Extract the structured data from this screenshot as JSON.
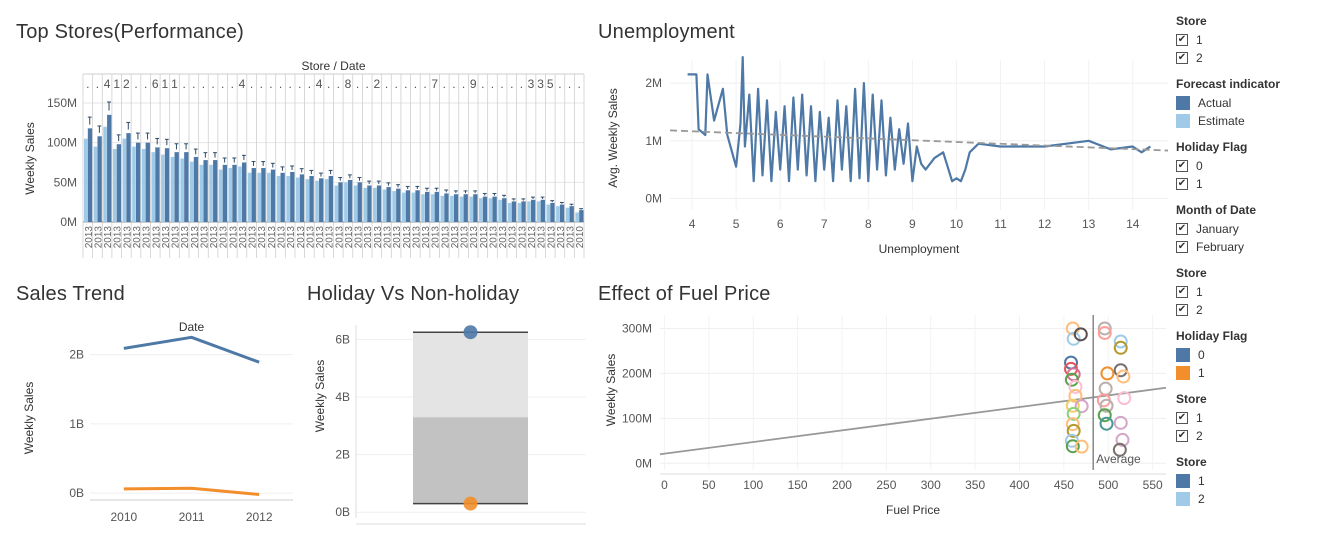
{
  "titles": {
    "top_stores": "Top Stores(Performance)",
    "unemployment": "Unemployment",
    "sales_trend": "Sales Trend",
    "holiday": "Holiday Vs Non-holiday",
    "fuel": "Effect of Fuel Price"
  },
  "colors": {
    "blue": "#4e79a7",
    "lightblue": "#a0cbe8",
    "orange": "#f28e2b",
    "grid": "#e6e6e6"
  },
  "chart_data": [
    {
      "id": "top_stores",
      "type": "bar",
      "title": "Top Stores(Performance)",
      "header": "Store / Date",
      "ylabel": "Weekly Sales",
      "ylim": [
        0,
        160
      ],
      "yticks": [
        {
          "v": 0,
          "label": "0M"
        },
        {
          "v": 50,
          "label": "50M"
        },
        {
          "v": 100,
          "label": "100M"
        },
        {
          "v": 150,
          "label": "150M"
        }
      ],
      "store_headers": [
        ".",
        ".",
        "4",
        "1",
        "2",
        ".",
        ".",
        "6",
        "1",
        "1",
        ".",
        ".",
        ".",
        ".",
        ".",
        ".",
        "4",
        ".",
        ".",
        ".",
        ".",
        ".",
        ".",
        ".",
        "4",
        ".",
        ".",
        "8",
        ".",
        ".",
        "2",
        ".",
        ".",
        ".",
        ".",
        ".",
        "7",
        ".",
        ".",
        ".",
        "9",
        ".",
        ".",
        ".",
        ".",
        ".",
        "3",
        "3",
        "5",
        ".",
        ".",
        "."
      ],
      "x_labels": [
        "2013",
        "2013",
        "2013",
        "2013",
        "2013",
        "2013",
        "2013",
        "2013",
        "2013",
        "2013",
        "2013",
        "2013",
        "2013",
        "2013",
        "2013",
        "2013",
        "2013",
        "2013",
        "2013",
        "2013",
        "2013",
        "2013",
        "2013",
        "2013",
        "2013",
        "2013",
        "2013",
        "2013",
        "2013",
        "2013",
        "2013",
        "2013",
        "2013",
        "2013",
        "2013",
        "2013",
        "2013",
        "2013",
        "2013",
        "2013",
        "2013",
        "2013",
        "2013",
        "2013",
        "2013",
        "2013",
        "2013",
        "2013",
        "2013",
        "2013",
        "2013",
        "2010"
      ],
      "values": [
        118,
        108,
        135,
        98,
        112,
        100,
        100,
        94,
        93,
        88,
        88,
        82,
        78,
        78,
        72,
        72,
        75,
        68,
        68,
        66,
        62,
        63,
        60,
        58,
        55,
        58,
        50,
        53,
        50,
        46,
        46,
        44,
        42,
        40,
        40,
        38,
        38,
        36,
        35,
        35,
        35,
        32,
        32,
        30,
        26,
        26,
        28,
        28,
        24,
        22,
        20,
        15
      ],
      "secondary_values": [
        105,
        95,
        120,
        92,
        105,
        95,
        92,
        88,
        85,
        82,
        80,
        76,
        72,
        72,
        66,
        68,
        70,
        62,
        62,
        62,
        58,
        58,
        56,
        54,
        52,
        54,
        46,
        50,
        46,
        43,
        43,
        41,
        39,
        37,
        37,
        35,
        35,
        33,
        33,
        32,
        32,
        30,
        30,
        28,
        24,
        24,
        26,
        26,
        22,
        20,
        18,
        12
      ]
    },
    {
      "id": "unemployment",
      "type": "line",
      "title": "Unemployment",
      "xlabel": "Unemployment",
      "ylabel": "Avg. Weekly Sales",
      "xlim": [
        3.5,
        14.8
      ],
      "ylim": [
        -0.2,
        2.4
      ],
      "xticks": [
        4,
        5,
        6,
        7,
        8,
        9,
        10,
        11,
        12,
        13,
        14
      ],
      "yticks": [
        {
          "v": 0,
          "label": "0M"
        },
        {
          "v": 1,
          "label": "1M"
        },
        {
          "v": 2,
          "label": "2M"
        }
      ],
      "trend": [
        [
          3.5,
          1.18
        ],
        [
          14.8,
          0.83
        ]
      ],
      "series": [
        {
          "name": "Actual",
          "points": [
            [
              3.9,
              2.15
            ],
            [
              4.1,
              2.15
            ],
            [
              4.15,
              1.2
            ],
            [
              4.3,
              1.1
            ],
            [
              4.35,
              2.15
            ],
            [
              4.5,
              1.35
            ],
            [
              4.7,
              1.9
            ],
            [
              4.8,
              1.1
            ],
            [
              5.0,
              0.55
            ],
            [
              5.1,
              1.3
            ],
            [
              5.15,
              2.45
            ],
            [
              5.2,
              0.9
            ],
            [
              5.3,
              1.8
            ],
            [
              5.4,
              0.3
            ],
            [
              5.5,
              1.9
            ],
            [
              5.6,
              0.4
            ],
            [
              5.7,
              1.7
            ],
            [
              5.8,
              0.3
            ],
            [
              5.9,
              1.5
            ],
            [
              6.0,
              0.5
            ],
            [
              6.1,
              1.6
            ],
            [
              6.2,
              0.3
            ],
            [
              6.3,
              1.75
            ],
            [
              6.4,
              0.5
            ],
            [
              6.5,
              1.8
            ],
            [
              6.6,
              0.4
            ],
            [
              6.7,
              1.6
            ],
            [
              6.8,
              0.3
            ],
            [
              6.9,
              1.5
            ],
            [
              7.0,
              0.5
            ],
            [
              7.1,
              1.4
            ],
            [
              7.2,
              0.3
            ],
            [
              7.3,
              1.7
            ],
            [
              7.4,
              0.5
            ],
            [
              7.5,
              1.6
            ],
            [
              7.6,
              0.3
            ],
            [
              7.7,
              1.9
            ],
            [
              7.8,
              0.35
            ],
            [
              7.9,
              2.0
            ],
            [
              8.0,
              0.3
            ],
            [
              8.1,
              1.8
            ],
            [
              8.2,
              0.5
            ],
            [
              8.3,
              1.7
            ],
            [
              8.4,
              0.4
            ],
            [
              8.5,
              1.4
            ],
            [
              8.6,
              0.5
            ],
            [
              8.7,
              1.2
            ],
            [
              8.8,
              0.6
            ],
            [
              8.9,
              1.3
            ],
            [
              9.0,
              0.3
            ],
            [
              9.1,
              0.9
            ],
            [
              9.2,
              0.6
            ],
            [
              9.3,
              0.5
            ],
            [
              9.5,
              0.7
            ],
            [
              9.7,
              0.8
            ],
            [
              9.9,
              0.3
            ],
            [
              10.0,
              0.35
            ],
            [
              10.1,
              0.3
            ],
            [
              10.2,
              0.5
            ],
            [
              10.3,
              0.8
            ],
            [
              10.5,
              0.95
            ],
            [
              11.0,
              0.9
            ],
            [
              12.0,
              0.9
            ],
            [
              13.0,
              1.0
            ],
            [
              13.5,
              0.85
            ],
            [
              14.0,
              0.9
            ],
            [
              14.2,
              0.8
            ],
            [
              14.4,
              0.9
            ]
          ]
        }
      ]
    },
    {
      "id": "sales_trend",
      "type": "line",
      "title": "Sales Trend",
      "header": "Date",
      "ylabel": "Weekly Sales",
      "categories": [
        "2010",
        "2011",
        "2012"
      ],
      "ylim": [
        -0.1,
        2.5
      ],
      "yticks": [
        {
          "v": 0,
          "label": "0B"
        },
        {
          "v": 1,
          "label": "1B"
        },
        {
          "v": 2,
          "label": "2B"
        }
      ],
      "series": [
        {
          "name": "0",
          "values": [
            2.09,
            2.25,
            1.89
          ]
        },
        {
          "name": "1",
          "values": [
            0.06,
            0.07,
            -0.02
          ]
        }
      ]
    },
    {
      "id": "holiday",
      "type": "bar",
      "title": "Holiday Vs Non-holiday",
      "ylabel": "Weekly Sales",
      "ylim": [
        -0.2,
        6.5
      ],
      "yticks": [
        {
          "v": 0,
          "label": "0B"
        },
        {
          "v": 2,
          "label": "2B"
        },
        {
          "v": 4,
          "label": "4B"
        },
        {
          "v": 6,
          "label": "6B"
        }
      ],
      "band": {
        "low": 0.3,
        "mid": 3.3,
        "high": 6.25
      },
      "points": [
        {
          "name": "0",
          "value": 6.25
        },
        {
          "name": "1",
          "value": 0.3
        }
      ]
    },
    {
      "id": "fuel",
      "type": "scatter",
      "title": "Effect of Fuel Price",
      "xlabel": "Fuel Price",
      "ylabel": "Weekly Sales",
      "xlim": [
        -5,
        565
      ],
      "ylim": [
        -15,
        330
      ],
      "xticks": [
        0,
        50,
        100,
        150,
        200,
        250,
        300,
        350,
        400,
        450,
        500,
        550
      ],
      "yticks": [
        {
          "v": 0,
          "label": "0M"
        },
        {
          "v": 100,
          "label": "100M"
        },
        {
          "v": 200,
          "label": "200M"
        },
        {
          "v": 300,
          "label": "300M"
        }
      ],
      "trend": [
        [
          -5,
          20
        ],
        [
          565,
          168
        ]
      ],
      "reference": {
        "value": 483,
        "label": "Average"
      },
      "points": [
        {
          "x": 460,
          "y": 300,
          "c": "#ffbe7d"
        },
        {
          "x": 461,
          "y": 277,
          "c": "#a0cbe8"
        },
        {
          "x": 469,
          "y": 287,
          "c": "#59504e"
        },
        {
          "x": 496,
          "y": 300,
          "c": "#bab0ac"
        },
        {
          "x": 496,
          "y": 290,
          "c": "#ff9d9a"
        },
        {
          "x": 514,
          "y": 271,
          "c": "#a0cbe8"
        },
        {
          "x": 514,
          "y": 257,
          "c": "#b6992d"
        },
        {
          "x": 458,
          "y": 224,
          "c": "#4e79a7"
        },
        {
          "x": 458,
          "y": 210,
          "c": "#e15759"
        },
        {
          "x": 461,
          "y": 198,
          "c": "#d37295"
        },
        {
          "x": 459,
          "y": 186,
          "c": "#59a14f"
        },
        {
          "x": 463,
          "y": 170,
          "c": "#fabfd2"
        },
        {
          "x": 499,
          "y": 200,
          "c": "#f28e2b"
        },
        {
          "x": 514,
          "y": 207,
          "c": "#79706e"
        },
        {
          "x": 517,
          "y": 193,
          "c": "#ffbe7d"
        },
        {
          "x": 497,
          "y": 166,
          "c": "#bab0ac"
        },
        {
          "x": 463,
          "y": 150,
          "c": "#ffbe7d"
        },
        {
          "x": 460,
          "y": 128,
          "c": "#f1ce63"
        },
        {
          "x": 470,
          "y": 127,
          "c": "#d4a6c8"
        },
        {
          "x": 495,
          "y": 140,
          "c": "#ff9d9a"
        },
        {
          "x": 498,
          "y": 128,
          "c": "#bab0ac"
        },
        {
          "x": 518,
          "y": 145,
          "c": "#fabfd2"
        },
        {
          "x": 461,
          "y": 110,
          "c": "#8cd17d"
        },
        {
          "x": 460,
          "y": 87,
          "c": "#ffbe7d"
        },
        {
          "x": 461,
          "y": 72,
          "c": "#b6992d"
        },
        {
          "x": 459,
          "y": 50,
          "c": "#a0cbe8"
        },
        {
          "x": 460,
          "y": 38,
          "c": "#59a14f"
        },
        {
          "x": 470,
          "y": 37,
          "c": "#ffbe7d"
        },
        {
          "x": 496,
          "y": 107,
          "c": "#59a14f"
        },
        {
          "x": 498,
          "y": 88,
          "c": "#499894"
        },
        {
          "x": 514,
          "y": 90,
          "c": "#d4a6c8"
        },
        {
          "x": 516,
          "y": 52,
          "c": "#d4a6c8"
        },
        {
          "x": 513,
          "y": 30,
          "c": "#79706e"
        }
      ]
    }
  ],
  "legend": {
    "groups": [
      {
        "title": "Store",
        "kind": "check",
        "items": [
          "1",
          "2"
        ]
      },
      {
        "title": "Forecast indicator",
        "kind": "swatch",
        "items": [
          "Actual",
          "Estimate"
        ],
        "colors": [
          "#4e79a7",
          "#a0cbe8"
        ]
      },
      {
        "title": "Holiday Flag",
        "kind": "check",
        "items": [
          "0",
          "1"
        ]
      },
      {
        "title": "Month of Date",
        "kind": "check",
        "items": [
          "January",
          "February"
        ]
      },
      {
        "title": "Store",
        "kind": "check",
        "items": [
          "1",
          "2"
        ]
      },
      {
        "title": "Holiday Flag",
        "kind": "swatch",
        "items": [
          "0",
          "1"
        ],
        "colors": [
          "#4e79a7",
          "#f28e2b"
        ]
      },
      {
        "title": "Store",
        "kind": "check",
        "items": [
          "1",
          "2"
        ]
      },
      {
        "title": "Store",
        "kind": "swatch",
        "items": [
          "1",
          "2"
        ],
        "colors": [
          "#4e79a7",
          "#a0cbe8"
        ]
      }
    ]
  }
}
